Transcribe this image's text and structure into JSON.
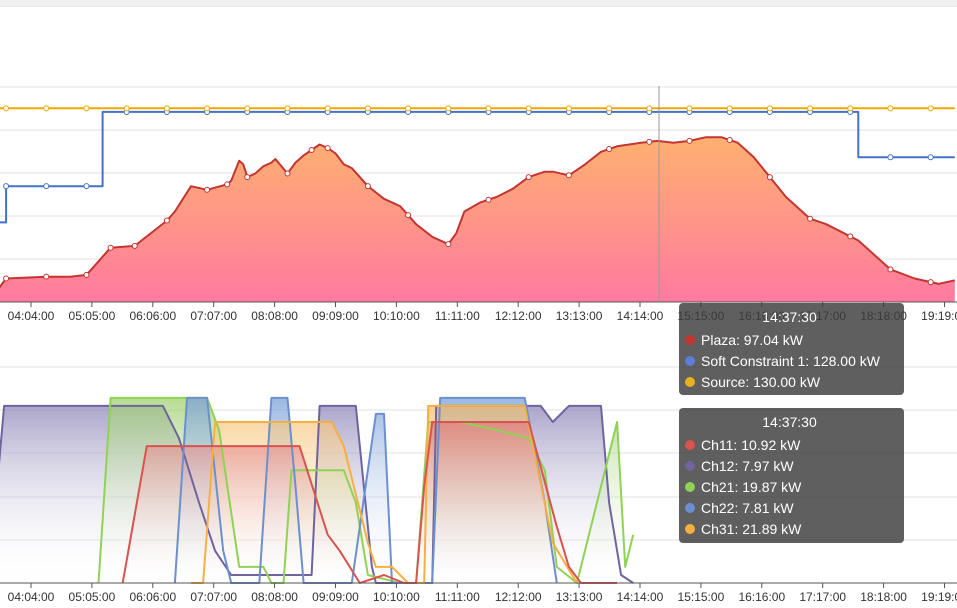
{
  "chart_data": [
    {
      "type": "area",
      "x_ticks": [
        "04:04:00",
        "05:05:00",
        "06:06:00",
        "07:07:00",
        "08:08:00",
        "09:09:00",
        "10:10:00",
        "11:11:00",
        "12:12:00",
        "13:13:00",
        "14:14:00",
        "15:15:00",
        "16:16:00",
        "17:17:00",
        "18:18:00",
        "19:19:00"
      ],
      "grid": true,
      "series": [
        {
          "name": "Plaza",
          "color": "#c23531",
          "fill_top": "#ffb070",
          "fill_bottom": "#ff7aa0",
          "points": [
            [
              0,
              0.2
            ],
            [
              0.4,
              2.6
            ],
            [
              1.4,
              2.8
            ],
            [
              2,
              2.8
            ],
            [
              2.4,
              3.0
            ],
            [
              3.0,
              6.0
            ],
            [
              3.6,
              6.2
            ],
            [
              4.4,
              9.0
            ],
            [
              4.6,
              10.0
            ],
            [
              5,
              12.8
            ],
            [
              5.4,
              12.4
            ],
            [
              5.9,
              13.0
            ],
            [
              6,
              13.4
            ],
            [
              6.2,
              15.6
            ],
            [
              6.3,
              15.2
            ],
            [
              6.4,
              13.8
            ],
            [
              6.6,
              14.2
            ],
            [
              6.8,
              15.0
            ],
            [
              7,
              15.4
            ],
            [
              7.1,
              15.8
            ],
            [
              7.4,
              14.2
            ],
            [
              7.6,
              15.4
            ],
            [
              7.8,
              16.2
            ],
            [
              8.0,
              16.8
            ],
            [
              8.2,
              17.4
            ],
            [
              8.4,
              17.0
            ],
            [
              8.6,
              16.4
            ],
            [
              8.8,
              15.2
            ],
            [
              9,
              14.8
            ],
            [
              9.4,
              12.8
            ],
            [
              9.8,
              11.4
            ],
            [
              10.2,
              10.6
            ],
            [
              10.6,
              8.6
            ],
            [
              11,
              7.2
            ],
            [
              11.4,
              6.4
            ],
            [
              11.6,
              7.6
            ],
            [
              11.8,
              10.0
            ],
            [
              12.2,
              11.0
            ],
            [
              12.6,
              11.6
            ],
            [
              13,
              12.5
            ],
            [
              13.4,
              13.8
            ],
            [
              13.8,
              14.4
            ],
            [
              14,
              14.4
            ],
            [
              14.4,
              14.0
            ],
            [
              14.8,
              15.2
            ],
            [
              15.2,
              16.6
            ],
            [
              15.6,
              17.2
            ],
            [
              16.2,
              17.6
            ],
            [
              16.6,
              17.8
            ],
            [
              17.0,
              17.6
            ],
            [
              17.4,
              17.8
            ],
            [
              17.8,
              18.2
            ],
            [
              18.2,
              18.2
            ],
            [
              18.6,
              17.6
            ],
            [
              19.0,
              16.0
            ],
            [
              19.4,
              13.8
            ],
            [
              19.8,
              11.6
            ],
            [
              20.4,
              9.2
            ],
            [
              20.8,
              8.6
            ],
            [
              21.6,
              6.8
            ],
            [
              22.4,
              3.6
            ],
            [
              23,
              2.6
            ],
            [
              23.6,
              2.0
            ],
            [
              24,
              2.4
            ]
          ],
          "marker_x": [
            0.4,
            1.4,
            2.4,
            3.0,
            3.6,
            4.4,
            5.4,
            5.9,
            6.4,
            7.4,
            8.0,
            8.4,
            9.4,
            10.4,
            11.4,
            12.4,
            13.4,
            14.4,
            15.4,
            16.4,
            17.4,
            18.4,
            19.4,
            20.4,
            21.4,
            22.4,
            23.4
          ]
        },
        {
          "name": "Soft Constraint 1",
          "color": "#4472c4",
          "steps": [
            [
              0,
              8.8
            ],
            [
              0.4,
              8.8
            ],
            [
              0.4,
              12.8
            ],
            [
              2.8,
              12.8
            ],
            [
              2.8,
              21.0
            ],
            [
              21.6,
              21.0
            ],
            [
              21.6,
              16.0
            ],
            [
              24,
              16.0
            ]
          ],
          "marker_x": [
            0.4,
            1.4,
            2.4,
            3.4,
            4.4,
            5.4,
            6.4,
            7.4,
            8.4,
            9.4,
            10.4,
            11.4,
            12.4,
            13.4,
            14.4,
            15.4,
            16.4,
            17.4,
            18.4,
            19.4,
            20.4,
            21.4,
            22.4,
            23.4
          ]
        },
        {
          "name": "Source",
          "color": "#f0a800",
          "steps": [
            [
              0,
              21.4
            ],
            [
              24,
              21.4
            ]
          ],
          "marker_x": [
            0.4,
            1.4,
            2.4,
            3.4,
            4.4,
            5.4,
            6.4,
            7.4,
            8.4,
            9.4,
            10.4,
            11.4,
            12.4,
            13.4,
            14.4,
            15.4,
            16.4,
            17.4,
            18.4,
            19.4,
            20.4,
            21.4,
            22.4,
            23.4
          ]
        }
      ],
      "tooltip": {
        "time": "14:37:30",
        "rows": [
          {
            "label": "Plaza: 97.04 kW",
            "color": "#c23531"
          },
          {
            "label": "Soft Constraint 1: 128.00 kW",
            "color": "#5b7fd6"
          },
          {
            "label": "Source: 130.00 kW",
            "color": "#e6b020"
          }
        ]
      },
      "crosshair_x": 10.8
    },
    {
      "type": "area",
      "x_ticks": [
        "04:04:00",
        "05:05:00",
        "06:06:00",
        "07:07:00",
        "08:08:00",
        "09:09:00",
        "10:10:00",
        "11:11:00",
        "12:12:00",
        "13:13:00",
        "14:14:00",
        "15:15:00",
        "16:16:00",
        "17:17:00",
        "18:18:00",
        "19:19:00"
      ],
      "grid": true,
      "series": [
        {
          "name": "Ch12",
          "color": "#6f63a0",
          "points": [
            [
              0,
              2
            ],
            [
              0.35,
              22
            ],
            [
              3,
              22
            ],
            [
              4.3,
              22
            ],
            [
              4.7,
              18
            ],
            [
              5.2,
              10
            ],
            [
              5.6,
              4
            ],
            [
              6,
              1
            ],
            [
              8,
              1
            ],
            [
              8.2,
              22
            ],
            [
              9.1,
              22
            ],
            [
              9.5,
              2
            ],
            [
              9.6,
              0
            ],
            [
              11,
              0
            ],
            [
              11.1,
              22
            ],
            [
              13.7,
              22
            ],
            [
              14,
              20
            ],
            [
              14.4,
              22
            ],
            [
              15.2,
              22
            ],
            [
              15.4,
              10
            ],
            [
              15.7,
              1
            ],
            [
              16,
              0
            ]
          ],
          "fill_top": "#9087b8",
          "fill_bottom": "#ffffff"
        },
        {
          "name": "Ch21",
          "color": "#8fd255",
          "points": [
            [
              2.7,
              0
            ],
            [
              3.0,
              23
            ],
            [
              4.5,
              23
            ],
            [
              4.8,
              23
            ],
            [
              5.4,
              23
            ],
            [
              5.7,
              19
            ],
            [
              6.2,
              2
            ],
            [
              6.5,
              2
            ],
            [
              6.8,
              2
            ],
            [
              7,
              0
            ],
            [
              7.3,
              0
            ],
            [
              7.5,
              14
            ],
            [
              8.8,
              14
            ],
            [
              9.1,
              10
            ],
            [
              9.4,
              1
            ],
            [
              10.2,
              0
            ],
            [
              10.6,
              0
            ],
            [
              10.9,
              20
            ],
            [
              11.4,
              20
            ],
            [
              11.7,
              20
            ],
            [
              12.6,
              19
            ],
            [
              13.4,
              18
            ],
            [
              13.8,
              14
            ],
            [
              14.1,
              2
            ],
            [
              14.6,
              0
            ],
            [
              15.6,
              20
            ],
            [
              15.8,
              2
            ],
            [
              16,
              6
            ]
          ],
          "fill_top": "#9fd070",
          "fill_bottom": "#ffffff"
        },
        {
          "name": "Ch22",
          "color": "#6c8fd0",
          "points": [
            [
              4.6,
              0
            ],
            [
              4.9,
              23
            ],
            [
              5.4,
              23
            ],
            [
              5.8,
              4
            ],
            [
              6.0,
              0
            ],
            [
              6.7,
              0
            ],
            [
              7.0,
              23
            ],
            [
              7.4,
              23
            ],
            [
              7.6,
              12
            ],
            [
              7.8,
              0
            ],
            [
              9.0,
              0
            ],
            [
              9.6,
              21
            ],
            [
              9.8,
              21
            ],
            [
              10,
              0
            ],
            [
              11.0,
              0
            ],
            [
              11.2,
              23
            ],
            [
              12.4,
              23
            ],
            [
              13.3,
              23
            ],
            [
              13.8,
              10
            ],
            [
              14.1,
              0
            ]
          ],
          "fill_top": "#7aa0d8",
          "fill_bottom": "#ffffff"
        },
        {
          "name": "Ch31",
          "color": "#f5b040",
          "points": [
            [
              5.0,
              0
            ],
            [
              5.3,
              0
            ],
            [
              5.6,
              20
            ],
            [
              6.4,
              20
            ],
            [
              8.5,
              20
            ],
            [
              8.8,
              17
            ],
            [
              9.4,
              5
            ],
            [
              9.6,
              2
            ],
            [
              10.0,
              2
            ],
            [
              10.4,
              0
            ],
            [
              10.8,
              0
            ],
            [
              10.9,
              22
            ],
            [
              11.4,
              22
            ],
            [
              12.0,
              22
            ],
            [
              13.3,
              22
            ],
            [
              14.0,
              5
            ],
            [
              14.6,
              0
            ]
          ],
          "fill_top": "#f5c070",
          "fill_bottom": "#ffffff"
        },
        {
          "name": "Ch11",
          "color": "#d9534f",
          "points": [
            [
              3.3,
              0
            ],
            [
              3.9,
              17
            ],
            [
              7.7,
              17
            ],
            [
              8.4,
              6
            ],
            [
              8.7,
              4
            ],
            [
              9.2,
              0
            ],
            [
              9.8,
              1
            ],
            [
              10.3,
              0
            ],
            [
              10.6,
              0
            ],
            [
              10.8,
              12
            ],
            [
              11.0,
              20
            ],
            [
              12.4,
              20
            ],
            [
              13.4,
              20
            ],
            [
              14.1,
              7
            ],
            [
              14.4,
              2
            ],
            [
              14.7,
              0
            ],
            [
              15.6,
              0
            ]
          ],
          "fill_top": "#e07a7a",
          "fill_bottom": "#ffffff"
        }
      ],
      "tooltip": {
        "time": "14:37:30",
        "rows": [
          {
            "label": "Ch11: 10.92 kW",
            "color": "#d9534f"
          },
          {
            "label": "Ch12: 7.97 kW",
            "color": "#6f63a0"
          },
          {
            "label": "Ch21: 19.87 kW",
            "color": "#8fd255"
          },
          {
            "label": "Ch22: 7.81 kW",
            "color": "#6c8fd0"
          },
          {
            "label": "Ch31: 21.89 kW",
            "color": "#f5b040"
          }
        ]
      }
    }
  ]
}
